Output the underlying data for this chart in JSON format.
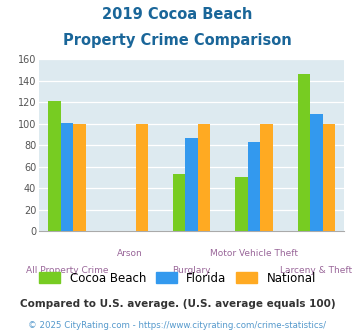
{
  "title_line1": "2019 Cocoa Beach",
  "title_line2": "Property Crime Comparison",
  "categories": [
    "All Property Crime",
    "Arson",
    "Burglary",
    "Motor Vehicle Theft",
    "Larceny & Theft"
  ],
  "series": {
    "Cocoa Beach": [
      121,
      0,
      53,
      50,
      146
    ],
    "Florida": [
      101,
      0,
      87,
      83,
      109
    ],
    "National": [
      100,
      100,
      100,
      100,
      100
    ]
  },
  "colors": {
    "Cocoa Beach": "#77cc22",
    "Florida": "#3399ee",
    "National": "#ffaa22"
  },
  "ylim": [
    0,
    160
  ],
  "yticks": [
    0,
    20,
    40,
    60,
    80,
    100,
    120,
    140,
    160
  ],
  "plot_bg": "#ddeaf0",
  "title_color": "#1a6699",
  "xlabel_color": "#996699",
  "footnote1": "Compared to U.S. average. (U.S. average equals 100)",
  "footnote2": "© 2025 CityRating.com - https://www.cityrating.com/crime-statistics/",
  "footnote1_color": "#333333",
  "footnote2_color": "#5599cc"
}
